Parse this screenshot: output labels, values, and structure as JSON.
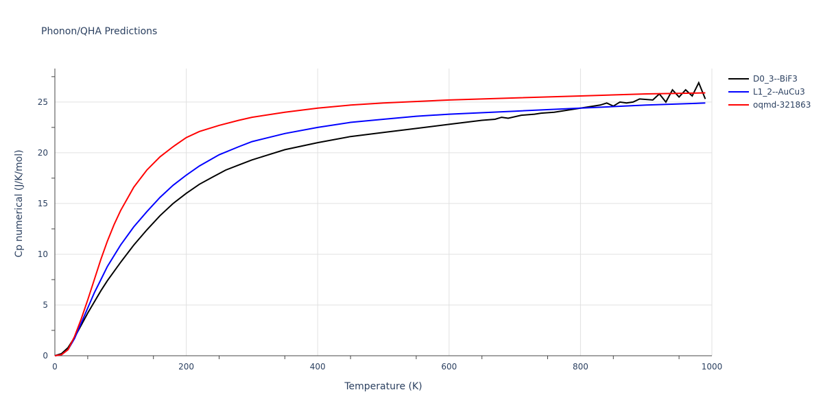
{
  "chart_data": {
    "type": "line",
    "title": "Phonon/QHA Predictions",
    "xlabel": "Temperature (K)",
    "ylabel": "Cp numerical (J/K/mol)",
    "xlim": [
      0,
      1000
    ],
    "ylim": [
      0,
      28.3
    ],
    "xticks": [
      0,
      200,
      400,
      600,
      800,
      1000
    ],
    "yticks": [
      0,
      5,
      10,
      15,
      20,
      25
    ],
    "grid": true,
    "legend_position": "top-right-outside",
    "series": [
      {
        "name": "D0_3--BiF3",
        "color": "#000000",
        "x": [
          0,
          10,
          20,
          30,
          40,
          50,
          60,
          70,
          80,
          100,
          120,
          140,
          160,
          180,
          200,
          220,
          240,
          260,
          280,
          300,
          320,
          350,
          400,
          450,
          500,
          550,
          600,
          650,
          670,
          680,
          690,
          710,
          730,
          740,
          760,
          770,
          790,
          810,
          830,
          840,
          850,
          860,
          870,
          880,
          890,
          910,
          920,
          930,
          940,
          950,
          960,
          970,
          980,
          990
        ],
        "y": [
          0,
          0.2,
          0.8,
          1.8,
          3.0,
          4.2,
          5.3,
          6.4,
          7.4,
          9.2,
          10.9,
          12.4,
          13.8,
          15.0,
          16.0,
          16.9,
          17.6,
          18.3,
          18.8,
          19.3,
          19.7,
          20.3,
          21.0,
          21.6,
          22.0,
          22.4,
          22.8,
          23.2,
          23.3,
          23.5,
          23.4,
          23.7,
          23.8,
          23.9,
          24.0,
          24.1,
          24.3,
          24.5,
          24.7,
          24.9,
          24.6,
          25.0,
          24.9,
          25.0,
          25.3,
          25.2,
          25.8,
          25.0,
          26.2,
          25.5,
          26.2,
          25.6,
          26.9,
          25.3
        ]
      },
      {
        "name": "L1_2--AuCu3",
        "color": "#0000ff",
        "x": [
          0,
          10,
          20,
          30,
          40,
          50,
          60,
          70,
          80,
          100,
          120,
          140,
          160,
          180,
          200,
          220,
          250,
          280,
          300,
          350,
          400,
          450,
          500,
          550,
          600,
          700,
          800,
          900,
          990
        ],
        "y": [
          0,
          0.1,
          0.6,
          1.7,
          3.2,
          4.7,
          6.2,
          7.5,
          8.8,
          10.9,
          12.7,
          14.2,
          15.6,
          16.8,
          17.8,
          18.7,
          19.8,
          20.6,
          21.1,
          21.9,
          22.5,
          23.0,
          23.3,
          23.6,
          23.8,
          24.1,
          24.4,
          24.7,
          24.9
        ]
      },
      {
        "name": "oqmd-321863",
        "color": "#ff0000",
        "x": [
          0,
          10,
          20,
          30,
          40,
          50,
          60,
          70,
          80,
          90,
          100,
          120,
          140,
          160,
          180,
          200,
          220,
          250,
          280,
          300,
          350,
          400,
          450,
          500,
          600,
          700,
          800,
          900,
          990
        ],
        "y": [
          0,
          0.1,
          0.6,
          1.9,
          3.6,
          5.5,
          7.5,
          9.5,
          11.3,
          12.9,
          14.3,
          16.6,
          18.3,
          19.6,
          20.6,
          21.5,
          22.1,
          22.7,
          23.2,
          23.5,
          24.0,
          24.4,
          24.7,
          24.9,
          25.2,
          25.4,
          25.6,
          25.8,
          25.9
        ]
      }
    ]
  }
}
